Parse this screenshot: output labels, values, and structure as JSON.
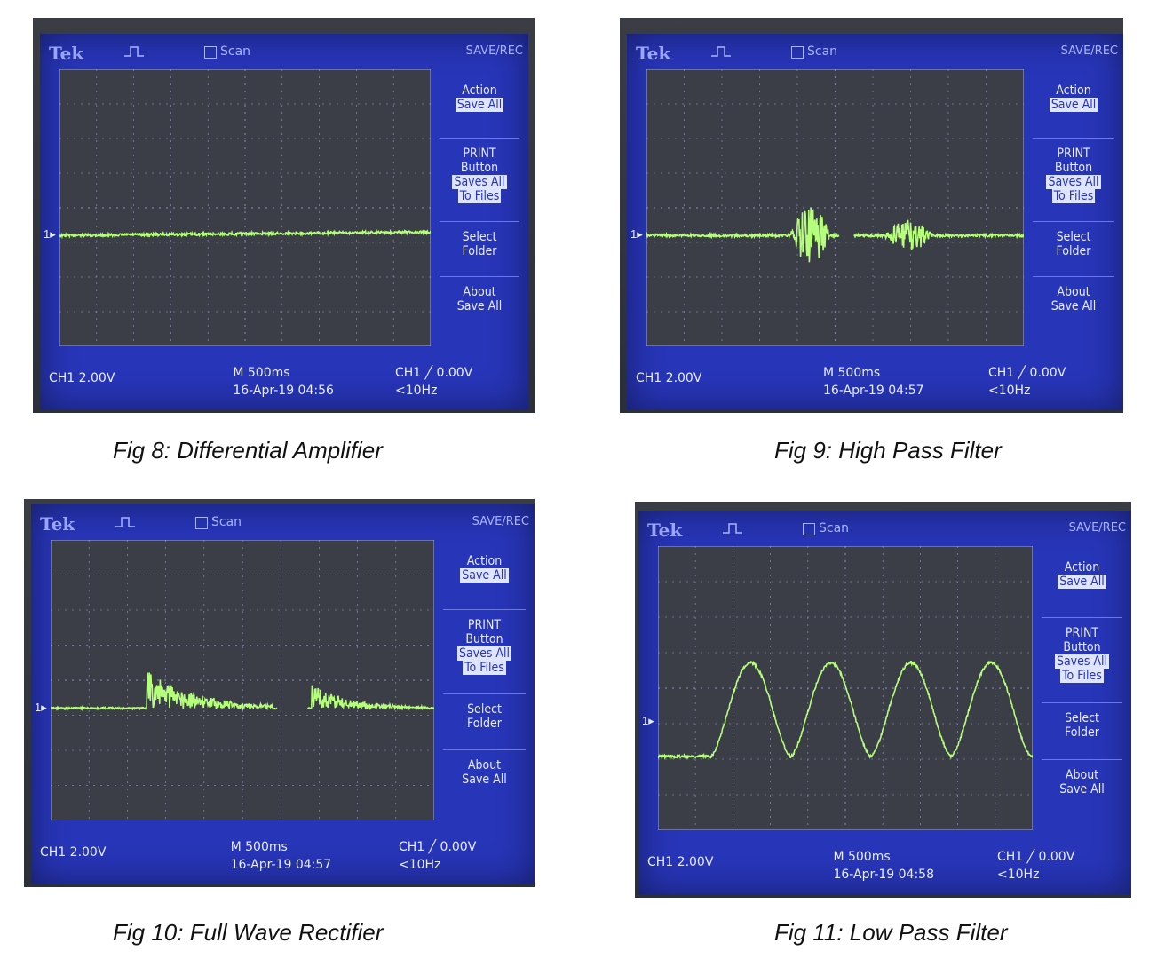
{
  "colors": {
    "screen_blue": "#2735b8",
    "trace_green": "#b6ff7a",
    "grid_bg": "#3b3e47"
  },
  "scope_ui": {
    "brand": "Tek",
    "scan_label": "Scan",
    "save_rec": "SAVE/REC",
    "action_label": "Action",
    "action_value": "Save All",
    "print_line1": "PRINT",
    "print_line2": "Button",
    "print_value1": "Saves All",
    "print_value2": "To Files",
    "select_line1": "Select",
    "select_line2": "Folder",
    "about_line1": "About",
    "about_line2": "Save All",
    "ch1_scale": "CH1  2.00V",
    "timebase": "M 500ms",
    "trigger": "CH1 ╱ 0.00V",
    "trigger_freq": "<10Hz",
    "marker": "1▸"
  },
  "figures": [
    {
      "caption": "Fig 8: Differential Amplifier",
      "timestamp": "16-Apr-19 04:56",
      "signal": "differential"
    },
    {
      "caption": "Fig 9: High Pass Filter",
      "timestamp": "16-Apr-19 04:57",
      "signal": "highpass"
    },
    {
      "caption": "Fig 10: Full Wave Rectifier",
      "timestamp": "16-Apr-19 04:57",
      "signal": "rectifier"
    },
    {
      "caption": "Fig 11: Low Pass Filter",
      "timestamp": "16-Apr-19 04:58",
      "signal": "lowpass"
    }
  ]
}
